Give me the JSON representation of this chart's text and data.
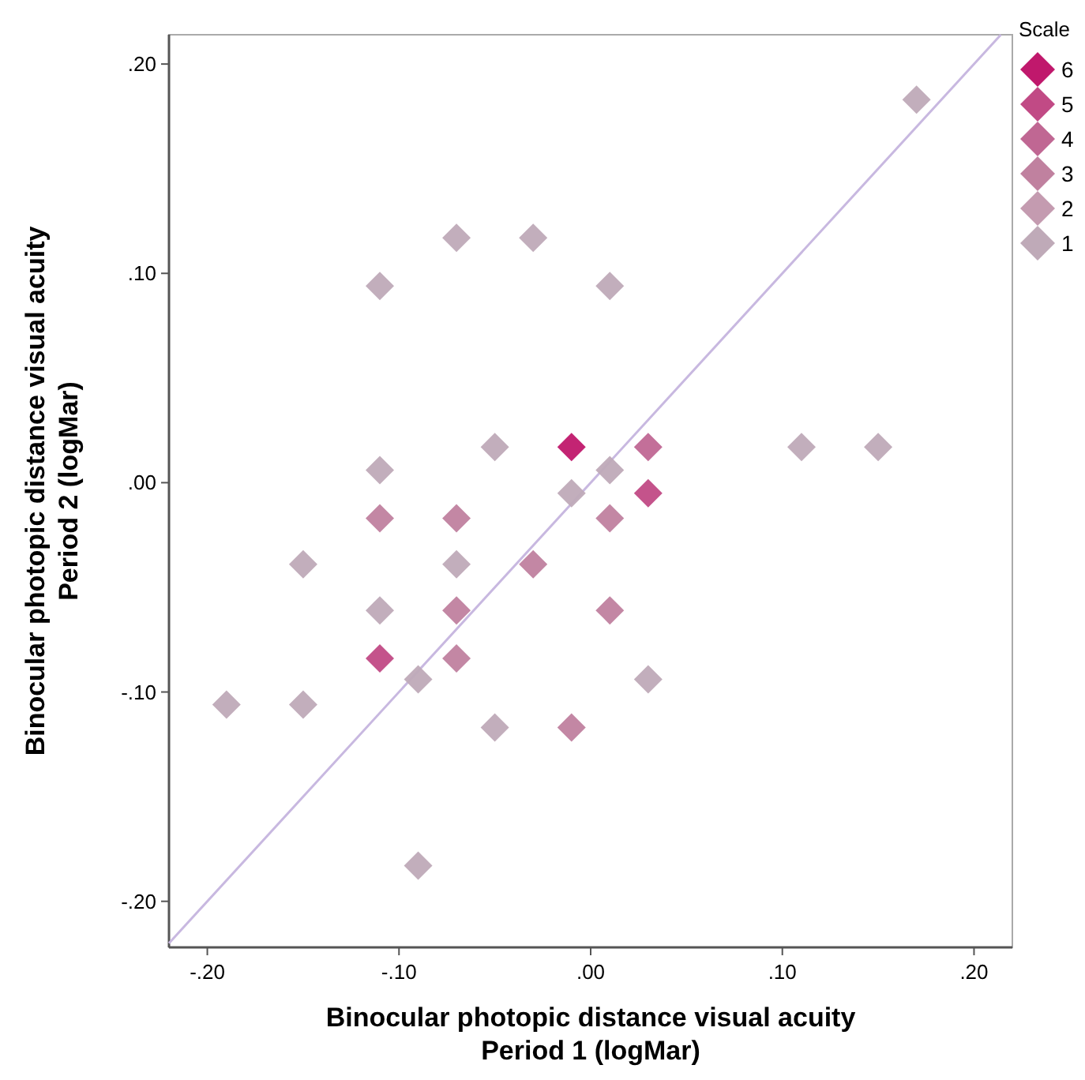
{
  "chart_data": {
    "type": "scatter",
    "xlabel": "Binocular photopic distance visual acuity\nPeriod 1 (logMar)",
    "ylabel": "Binocular photopic distance visual acuity\nPeriod 2 (logMar)",
    "legend_title": "Scale",
    "legend": "right",
    "marker": "diamond",
    "grid": false,
    "xlim": [
      -0.22,
      0.22
    ],
    "ylim": [
      -0.222,
      0.214
    ],
    "xticks": [
      {
        "value": -0.2,
        "label": "-.20"
      },
      {
        "value": -0.1,
        "label": "-.10"
      },
      {
        "value": 0,
        "label": ".00"
      },
      {
        "value": 0.1,
        "label": ".10"
      },
      {
        "value": 0.2,
        "label": ".20"
      }
    ],
    "yticks": [
      {
        "value": -0.2,
        "label": "-.20"
      },
      {
        "value": -0.1,
        "label": "-.10"
      },
      {
        "value": 0,
        "label": ".00"
      },
      {
        "value": 0.1,
        "label": ".10"
      },
      {
        "value": 0.2,
        "label": ".20"
      }
    ],
    "series": [
      {
        "type": "line",
        "color": "#c8b8e0",
        "x": [
          -0.22,
          0.214
        ],
        "values": [
          -0.22,
          0.214
        ],
        "marker": "none"
      },
      {
        "name": "6",
        "color": "#c0186c",
        "x": [
          -0.01
        ],
        "values": [
          0.017
        ]
      },
      {
        "name": "5",
        "color": "#c14a85",
        "x": [
          0.03,
          -0.11
        ],
        "values": [
          -0.005,
          -0.084
        ]
      },
      {
        "name": "4",
        "color": "#c06793",
        "x": [
          0.03
        ],
        "values": [
          0.017
        ]
      },
      {
        "name": "3",
        "color": "#c0819f",
        "x": [
          -0.11,
          -0.07,
          0.01,
          -0.03,
          -0.07,
          0.01,
          -0.07,
          -0.01
        ],
        "values": [
          -0.017,
          -0.017,
          -0.017,
          -0.039,
          -0.061,
          -0.061,
          -0.084,
          -0.117
        ]
      },
      {
        "name": "2",
        "color": "#c49bb0"
      },
      {
        "name": "1",
        "color": "#bfaab8",
        "x": [
          -0.07,
          -0.03,
          -0.11,
          0.01,
          -0.05,
          -0.11,
          0.01,
          -0.01,
          0.17,
          0.11,
          0.15,
          -0.15,
          -0.07,
          -0.11,
          -0.09,
          -0.19,
          -0.15,
          -0.05,
          -0.09,
          0.03
        ],
        "values": [
          0.117,
          0.117,
          0.094,
          0.094,
          0.017,
          0.006,
          0.006,
          -0.005,
          0.183,
          0.017,
          0.017,
          -0.039,
          -0.039,
          -0.061,
          -0.094,
          -0.106,
          -0.106,
          -0.117,
          -0.183,
          -0.094
        ]
      }
    ]
  }
}
